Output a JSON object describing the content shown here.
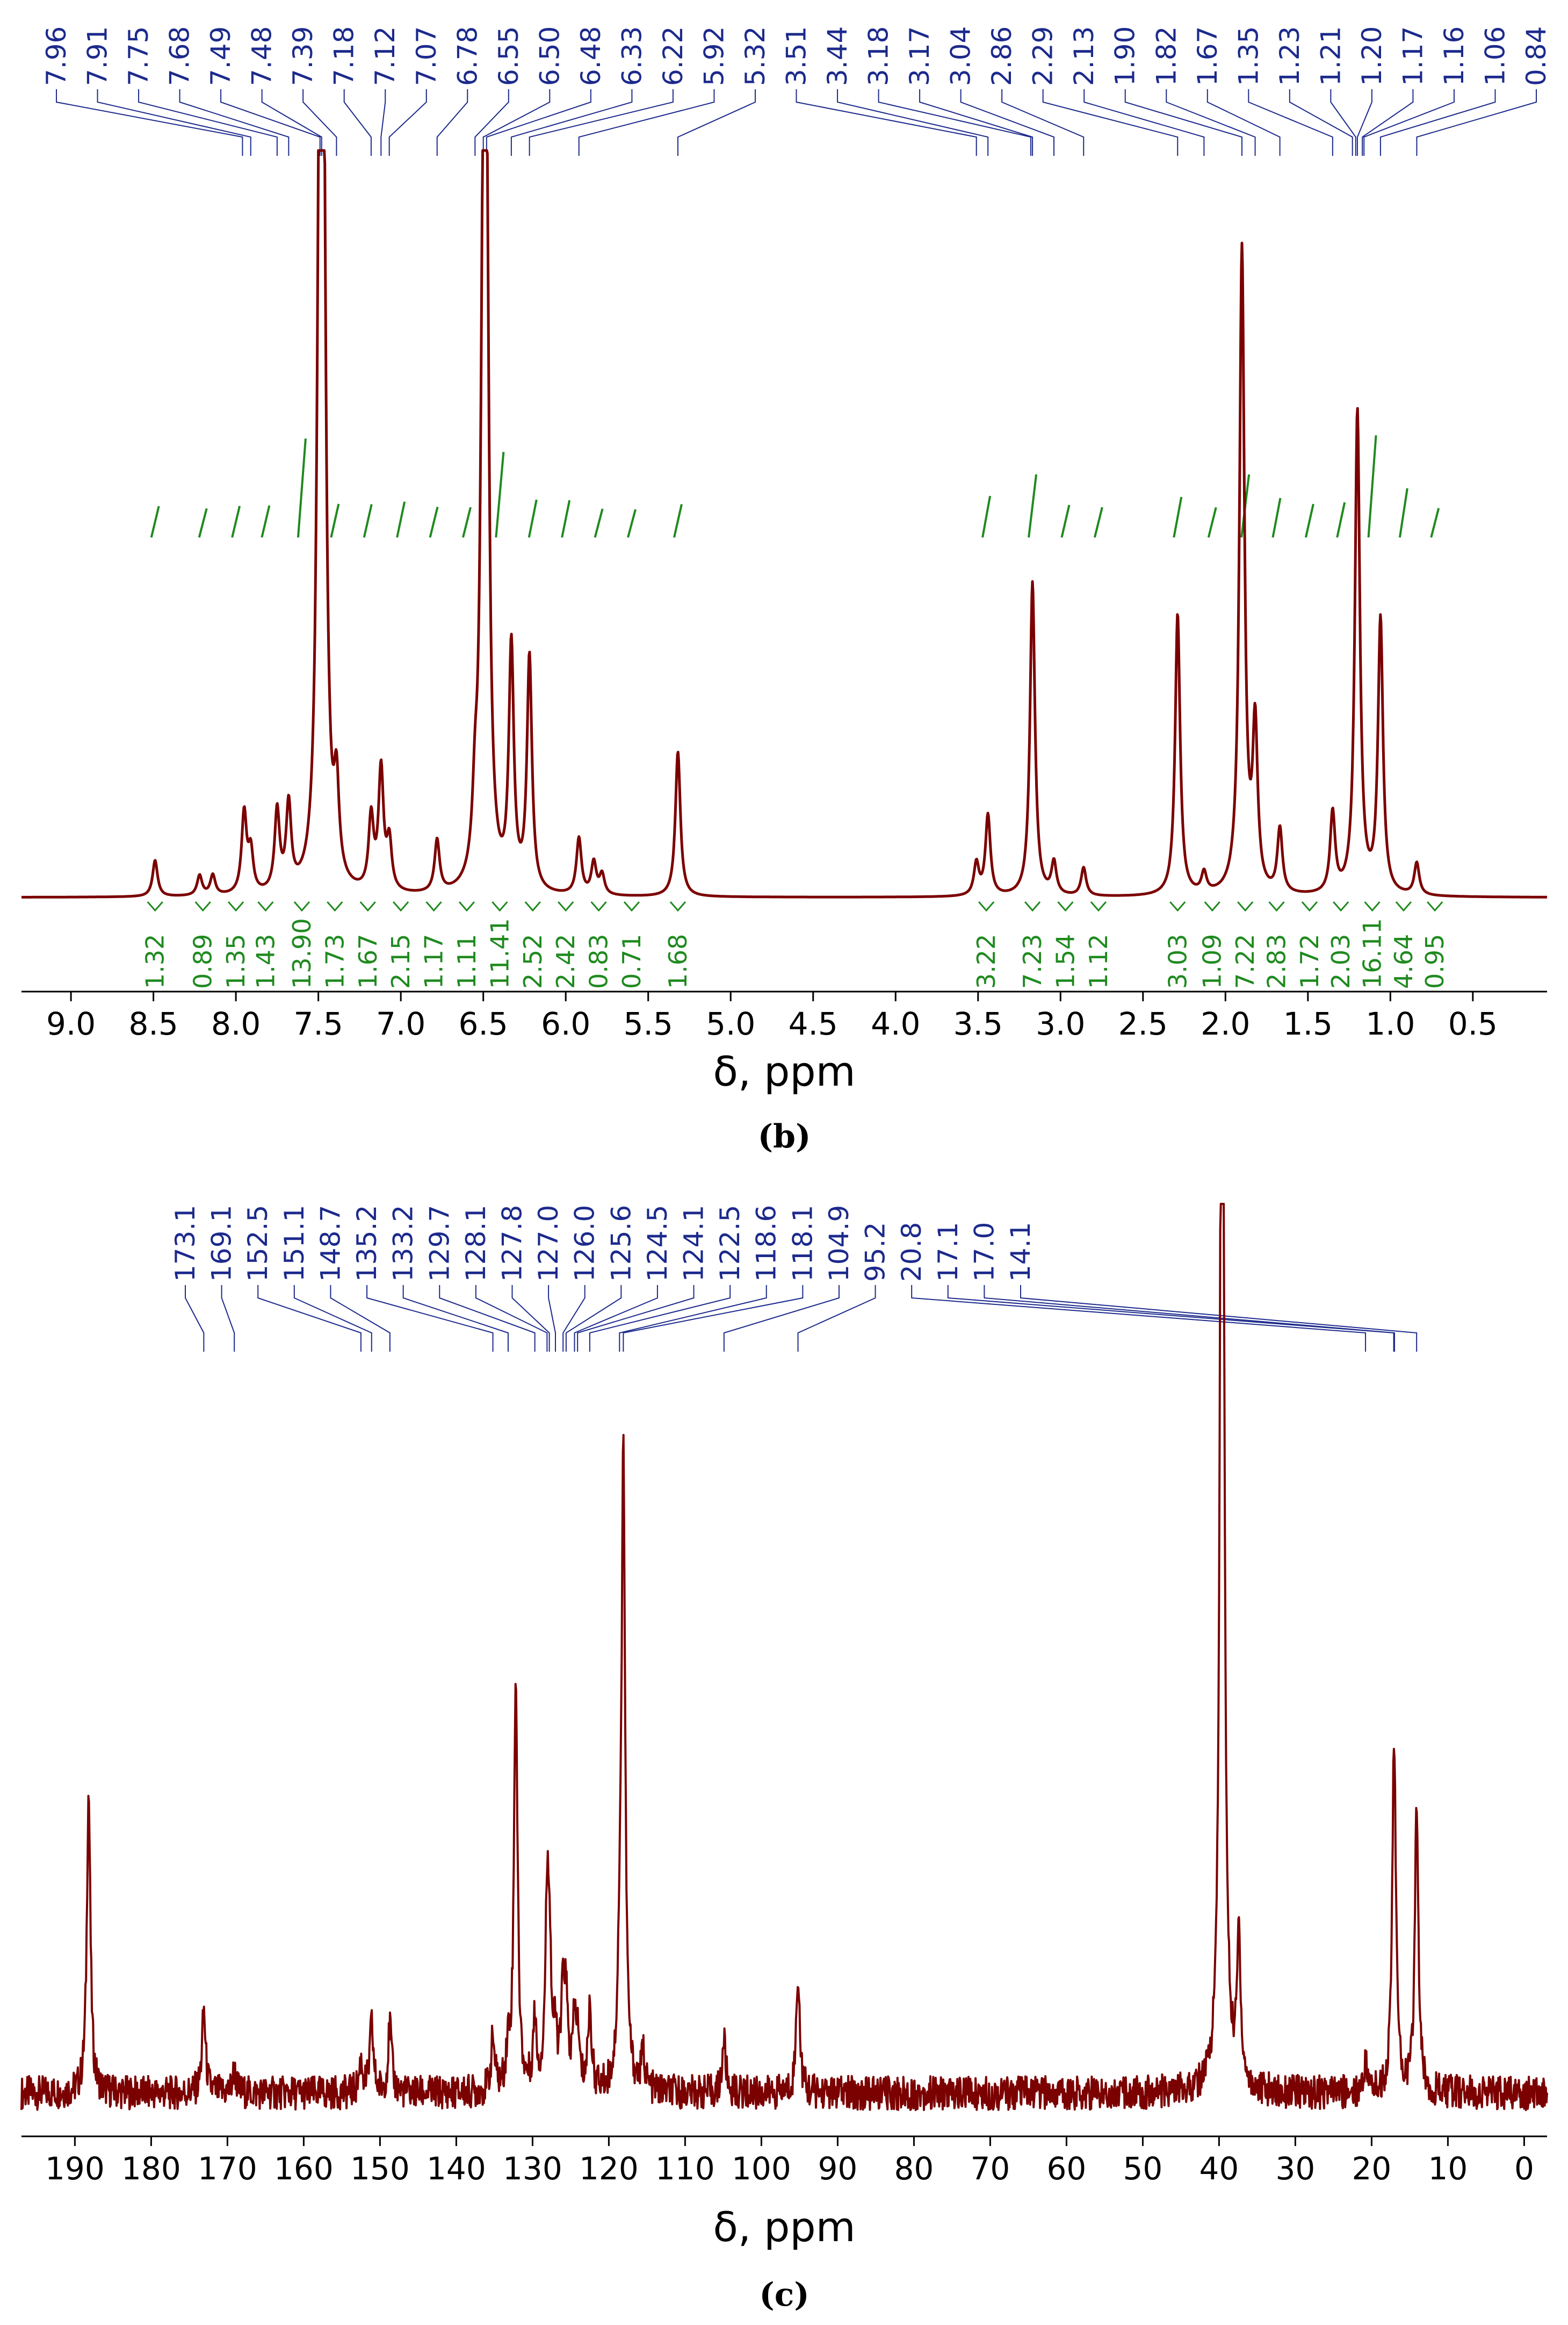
{
  "colors": {
    "spectrum": "#7b0000",
    "peak_label": "#1c2a8c",
    "integral": "#1f8a1f",
    "axis": "#000000"
  },
  "chart_data": [
    {
      "panel": "(b)",
      "type": "line",
      "xlabel": "δ, ppm",
      "xlim": [
        9.3,
        0.05
      ],
      "x_direction": "reversed",
      "x_ticks": [
        9.0,
        8.5,
        8.0,
        7.5,
        7.0,
        6.5,
        6.0,
        5.5,
        5.0,
        4.5,
        4.0,
        3.5,
        3.0,
        2.5,
        2.0,
        1.5,
        1.0,
        0.5
      ],
      "x_tick_labels": [
        "9.0",
        "8.5",
        "8.0",
        "7.5",
        "7.0",
        "6.5",
        "6.0",
        "5.5",
        "5.0",
        "4.5",
        "4.0",
        "3.5",
        "3.0",
        "2.5",
        "2.0",
        "1.5",
        "1.0",
        "0.5"
      ],
      "peak_labels": [
        "7.96",
        "7.91",
        "7.75",
        "7.68",
        "7.49",
        "7.48",
        "7.39",
        "7.18",
        "7.12",
        "7.07",
        "6.78",
        "6.55",
        "6.50",
        "6.48",
        "6.33",
        "6.22",
        "5.92",
        "5.32",
        "3.51",
        "3.44",
        "3.18",
        "3.17",
        "3.04",
        "2.86",
        "2.29",
        "2.13",
        "1.90",
        "1.82",
        "1.67",
        "1.35",
        "1.23",
        "1.21",
        "1.20",
        "1.17",
        "1.16",
        "1.06",
        "0.84"
      ],
      "peaks": [
        {
          "x": 8.49,
          "y": 0.045
        },
        {
          "x": 8.22,
          "y": 0.025
        },
        {
          "x": 8.14,
          "y": 0.025
        },
        {
          "x": 7.95,
          "y": 0.1
        },
        {
          "x": 7.91,
          "y": 0.05
        },
        {
          "x": 7.75,
          "y": 0.1
        },
        {
          "x": 7.68,
          "y": 0.105
        },
        {
          "x": 7.49,
          "y": 0.93
        },
        {
          "x": 7.47,
          "y": 0.82
        },
        {
          "x": 7.39,
          "y": 0.11
        },
        {
          "x": 7.18,
          "y": 0.09
        },
        {
          "x": 7.12,
          "y": 0.15
        },
        {
          "x": 7.07,
          "y": 0.06
        },
        {
          "x": 6.78,
          "y": 0.065
        },
        {
          "x": 6.55,
          "y": 0.08
        },
        {
          "x": 6.5,
          "y": 0.72
        },
        {
          "x": 6.48,
          "y": 0.71
        },
        {
          "x": 6.33,
          "y": 0.3
        },
        {
          "x": 6.22,
          "y": 0.29
        },
        {
          "x": 5.92,
          "y": 0.07
        },
        {
          "x": 5.83,
          "y": 0.04
        },
        {
          "x": 5.78,
          "y": 0.025
        },
        {
          "x": 5.32,
          "y": 0.18
        },
        {
          "x": 3.51,
          "y": 0.04
        },
        {
          "x": 3.44,
          "y": 0.1
        },
        {
          "x": 3.17,
          "y": 0.39
        },
        {
          "x": 3.04,
          "y": 0.04
        },
        {
          "x": 2.86,
          "y": 0.035
        },
        {
          "x": 2.29,
          "y": 0.35
        },
        {
          "x": 2.13,
          "y": 0.025
        },
        {
          "x": 1.9,
          "y": 0.8
        },
        {
          "x": 1.82,
          "y": 0.2
        },
        {
          "x": 1.67,
          "y": 0.08
        },
        {
          "x": 1.35,
          "y": 0.1
        },
        {
          "x": 1.2,
          "y": 0.6
        },
        {
          "x": 1.06,
          "y": 0.34
        },
        {
          "x": 0.84,
          "y": 0.04
        }
      ],
      "integrals": [
        {
          "x": 8.49,
          "value": "1.32"
        },
        {
          "x": 8.2,
          "value": "0.89"
        },
        {
          "x": 8.0,
          "value": "1.35"
        },
        {
          "x": 7.82,
          "value": "1.43"
        },
        {
          "x": 7.6,
          "value": "13.90"
        },
        {
          "x": 7.4,
          "value": "1.73"
        },
        {
          "x": 7.2,
          "value": "1.67"
        },
        {
          "x": 7.0,
          "value": "2.15"
        },
        {
          "x": 6.8,
          "value": "1.17"
        },
        {
          "x": 6.6,
          "value": "1.11"
        },
        {
          "x": 6.4,
          "value": "11.41"
        },
        {
          "x": 6.2,
          "value": "2.52"
        },
        {
          "x": 6.0,
          "value": "2.42"
        },
        {
          "x": 5.8,
          "value": "0.83"
        },
        {
          "x": 5.6,
          "value": "0.71"
        },
        {
          "x": 5.32,
          "value": "1.68"
        },
        {
          "x": 3.45,
          "value": "3.22"
        },
        {
          "x": 3.17,
          "value": "7.23"
        },
        {
          "x": 2.97,
          "value": "1.54"
        },
        {
          "x": 2.77,
          "value": "1.12"
        },
        {
          "x": 2.29,
          "value": "3.03"
        },
        {
          "x": 2.08,
          "value": "1.09"
        },
        {
          "x": 1.88,
          "value": "7.22"
        },
        {
          "x": 1.69,
          "value": "2.83"
        },
        {
          "x": 1.49,
          "value": "1.72"
        },
        {
          "x": 1.3,
          "value": "2.03"
        },
        {
          "x": 1.11,
          "value": "16.11"
        },
        {
          "x": 0.92,
          "value": "4.64"
        },
        {
          "x": 0.73,
          "value": "0.95"
        }
      ]
    },
    {
      "panel": "(c)",
      "type": "line",
      "xlabel": "δ, ppm",
      "xlim": [
        197,
        -3
      ],
      "x_direction": "reversed",
      "x_ticks": [
        190,
        180,
        170,
        160,
        150,
        140,
        130,
        120,
        110,
        100,
        90,
        80,
        70,
        60,
        50,
        40,
        30,
        20,
        10,
        0
      ],
      "x_tick_labels": [
        "190",
        "180",
        "170",
        "160",
        "150",
        "140",
        "130",
        "120",
        "110",
        "100",
        "90",
        "80",
        "70",
        "60",
        "50",
        "40",
        "30",
        "20",
        "10",
        "0"
      ],
      "peak_labels": [
        "173.1",
        "169.1",
        "152.5",
        "151.1",
        "148.7",
        "135.2",
        "133.2",
        "129.7",
        "128.1",
        "127.8",
        "127.0",
        "126.0",
        "125.6",
        "124.5",
        "124.1",
        "122.5",
        "118.6",
        "118.1",
        "104.9",
        "95.2",
        "20.8",
        "17.1",
        "17.0",
        "14.1"
      ],
      "peaks": [
        {
          "x": 188.2,
          "y": 0.4
        },
        {
          "x": 173.1,
          "y": 0.11
        },
        {
          "x": 169.1,
          "y": 0.03
        },
        {
          "x": 152.5,
          "y": 0.04
        },
        {
          "x": 151.1,
          "y": 0.09
        },
        {
          "x": 148.7,
          "y": 0.09
        },
        {
          "x": 135.2,
          "y": 0.07
        },
        {
          "x": 133.2,
          "y": 0.05
        },
        {
          "x": 132.2,
          "y": 0.55
        },
        {
          "x": 129.7,
          "y": 0.09
        },
        {
          "x": 128.1,
          "y": 0.21
        },
        {
          "x": 127.8,
          "y": 0.17
        },
        {
          "x": 127.0,
          "y": 0.06
        },
        {
          "x": 126.0,
          "y": 0.12
        },
        {
          "x": 125.6,
          "y": 0.1
        },
        {
          "x": 124.5,
          "y": 0.08
        },
        {
          "x": 124.1,
          "y": 0.06
        },
        {
          "x": 122.5,
          "y": 0.11
        },
        {
          "x": 118.6,
          "y": 0.11
        },
        {
          "x": 118.1,
          "y": 0.85
        },
        {
          "x": 115.5,
          "y": 0.05
        },
        {
          "x": 104.9,
          "y": 0.07
        },
        {
          "x": 95.2,
          "y": 0.16
        },
        {
          "x": 39.6,
          "y": 2.0
        },
        {
          "x": 37.4,
          "y": 0.2
        },
        {
          "x": 20.8,
          "y": 0.04
        },
        {
          "x": 17.1,
          "y": 0.26
        },
        {
          "x": 17.0,
          "y": 0.22
        },
        {
          "x": 14.1,
          "y": 0.38
        }
      ]
    }
  ]
}
